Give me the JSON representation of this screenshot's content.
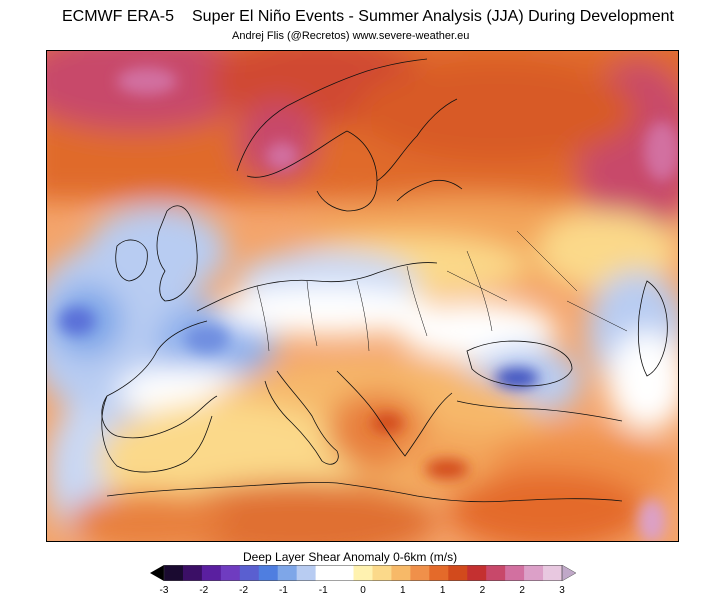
{
  "header": {
    "left": "ECMWF ERA-5",
    "title": "Super El Niño Events - Summer Analysis (JJA) During Development",
    "credit": "Andrej Flis (@Recretos)   www.severe-weather.eu"
  },
  "legend": {
    "title": "Deep Layer Shear Anomaly   0-6km (m/s)",
    "ticks": [
      "-3",
      "-2",
      "-2",
      "-1",
      "-1",
      "0",
      "1",
      "1",
      "2",
      "2",
      "3"
    ],
    "colors": [
      "#1a0a30",
      "#3b0f66",
      "#5a1fa0",
      "#6f3cc0",
      "#5a5fd0",
      "#4f7ee0",
      "#7ea6e8",
      "#b8ccf2",
      "#ffffff",
      "#ffffff",
      "#fff2b0",
      "#fbd98a",
      "#f7b968",
      "#f0904a",
      "#e46a2a",
      "#d24a1c",
      "#c43030",
      "#c8486a",
      "#d270a0",
      "#dca0c8",
      "#e8c8e0"
    ]
  },
  "map": {
    "palette": {
      "strong_pos": "#c8486a",
      "pos_high": "#d24a1c",
      "pos_mid": "#e46a2a",
      "pos_low": "#f7b968",
      "pos_weak": "#fff2b0",
      "neutral": "#ffffff",
      "neg_weak": "#b8ccf2",
      "neg_mid": "#7ea6e8",
      "neg_strong": "#4f6fd8",
      "neg_max": "#3a4fc0"
    }
  }
}
